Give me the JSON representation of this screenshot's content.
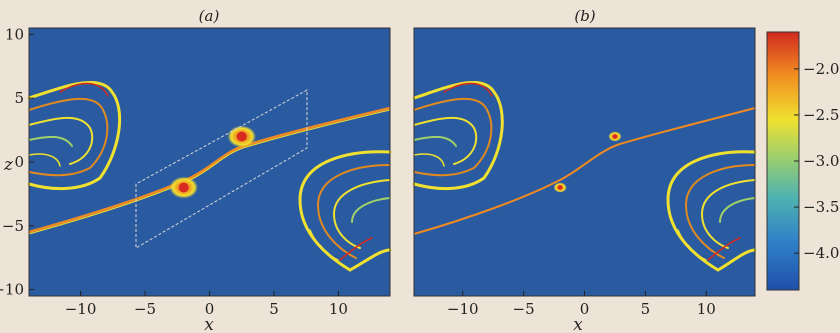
{
  "chart_data": {
    "type": "heatmap",
    "panels": [
      {
        "label": "(a)",
        "has_box": true,
        "vortices": [
          [
            -2,
            -2
          ],
          [
            2.5,
            2
          ]
        ]
      },
      {
        "label": "(b)",
        "has_box": false,
        "vortices": [
          [
            -2,
            -2
          ],
          [
            2.5,
            2
          ]
        ]
      }
    ],
    "xlabel": "x",
    "ylabel": "z",
    "xlim": [
      -14,
      14
    ],
    "ylim": [
      -10.5,
      10.5
    ],
    "xticks": [
      -10,
      -5,
      0,
      5,
      10
    ],
    "xtick_labels": [
      "−10",
      "−5",
      "0",
      "5",
      "10"
    ],
    "yticks": [
      10,
      5,
      0,
      -5,
      -10
    ],
    "ytick_labels": [
      "10",
      "5",
      "0",
      "−5",
      "−10"
    ],
    "colorbar": {
      "ticks": [
        -2.0,
        -2.5,
        -3.0,
        -3.5,
        -4.0
      ],
      "tick_labels": [
        "−2.0",
        "−2.5",
        "−3.0",
        "−3.5",
        "−4.0"
      ],
      "range": [
        -4.4,
        -1.6
      ],
      "colors": [
        "#1f4fa8",
        "#2f7fc8",
        "#4fb3b0",
        "#9fd06a",
        "#f0e030",
        "#f08a20",
        "#d02a20"
      ]
    },
    "background_color": "#2a5aa0"
  }
}
